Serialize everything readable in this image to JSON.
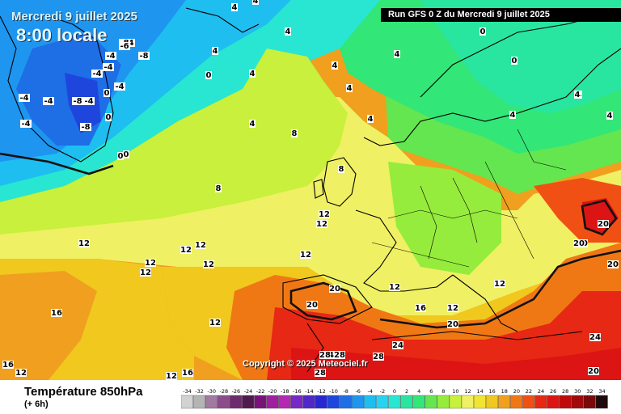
{
  "header": {
    "date_title": "Mercredi 9 juillet 2025",
    "time_title": "8:00 locale",
    "run_label": "Run GFS 0 Z du Mercredi 9 juillet 2025"
  },
  "copyright": "Copyright © 2025 Meteociel.fr",
  "legend": {
    "title": "Température 850hPa",
    "subtitle": "(+ 6h)",
    "unit_steps": [
      {
        "value": "-34",
        "color": "#d2d2d2"
      },
      {
        "value": "-32",
        "color": "#b4b4b4"
      },
      {
        "value": "-30",
        "color": "#a07aa0"
      },
      {
        "value": "-28",
        "color": "#8c4c8c"
      },
      {
        "value": "-26",
        "color": "#6e2a6e"
      },
      {
        "value": "-24",
        "color": "#501a50"
      },
      {
        "value": "-22",
        "color": "#781478"
      },
      {
        "value": "-20",
        "color": "#a01ea0"
      },
      {
        "value": "-18",
        "color": "#b428b4"
      },
      {
        "value": "-16",
        "color": "#7828c8"
      },
      {
        "value": "-14",
        "color": "#5028c8"
      },
      {
        "value": "-12",
        "color": "#2828d2"
      },
      {
        "value": "-10",
        "color": "#1e46dc"
      },
      {
        "value": "-8",
        "color": "#1e6ee6"
      },
      {
        "value": "-6",
        "color": "#1e96f0"
      },
      {
        "value": "-4",
        "color": "#1ebef0"
      },
      {
        "value": "-2",
        "color": "#28d2f0"
      },
      {
        "value": "0",
        "color": "#28e6d2"
      },
      {
        "value": "2",
        "color": "#28e6a0"
      },
      {
        "value": "4",
        "color": "#32e678"
      },
      {
        "value": "6",
        "color": "#64e650"
      },
      {
        "value": "8",
        "color": "#96ec3c"
      },
      {
        "value": "10",
        "color": "#c8f03c"
      },
      {
        "value": "12",
        "color": "#f0f064"
      },
      {
        "value": "14",
        "color": "#f0e632"
      },
      {
        "value": "16",
        "color": "#f0c81e"
      },
      {
        "value": "18",
        "color": "#f0a01e"
      },
      {
        "value": "20",
        "color": "#f07814"
      },
      {
        "value": "22",
        "color": "#f05014"
      },
      {
        "value": "24",
        "color": "#e62814"
      },
      {
        "value": "26",
        "color": "#dc1414"
      },
      {
        "value": "28",
        "color": "#be0a0a"
      },
      {
        "value": "30",
        "color": "#a00a0a"
      },
      {
        "value": "32",
        "color": "#780a0a"
      },
      {
        "value": "34",
        "color": "#1e0a0a"
      }
    ]
  },
  "isotherm_labels": [
    "4",
    "4",
    "4",
    "0",
    "0",
    "-4",
    "-4",
    "-8",
    "-6",
    "-8",
    "-4",
    "-4",
    "-4",
    "-4",
    "0",
    "-4",
    "-4",
    "-8",
    "-8",
    "-4",
    "4",
    "4",
    "0",
    "0",
    "0",
    "0",
    "4",
    "4",
    "4",
    "4",
    "4",
    "4",
    "4",
    "4",
    "4",
    "8",
    "8",
    "8",
    "12",
    "12",
    "12",
    "12",
    "12",
    "12",
    "12",
    "12",
    "12",
    "12",
    "12",
    "16",
    "16",
    "16",
    "16",
    "12",
    "12",
    "12",
    "12",
    "20",
    "20",
    "20",
    "20",
    "20",
    "24",
    "24",
    "24",
    "20",
    "20",
    "20",
    "28",
    "28",
    "28",
    "28"
  ]
}
